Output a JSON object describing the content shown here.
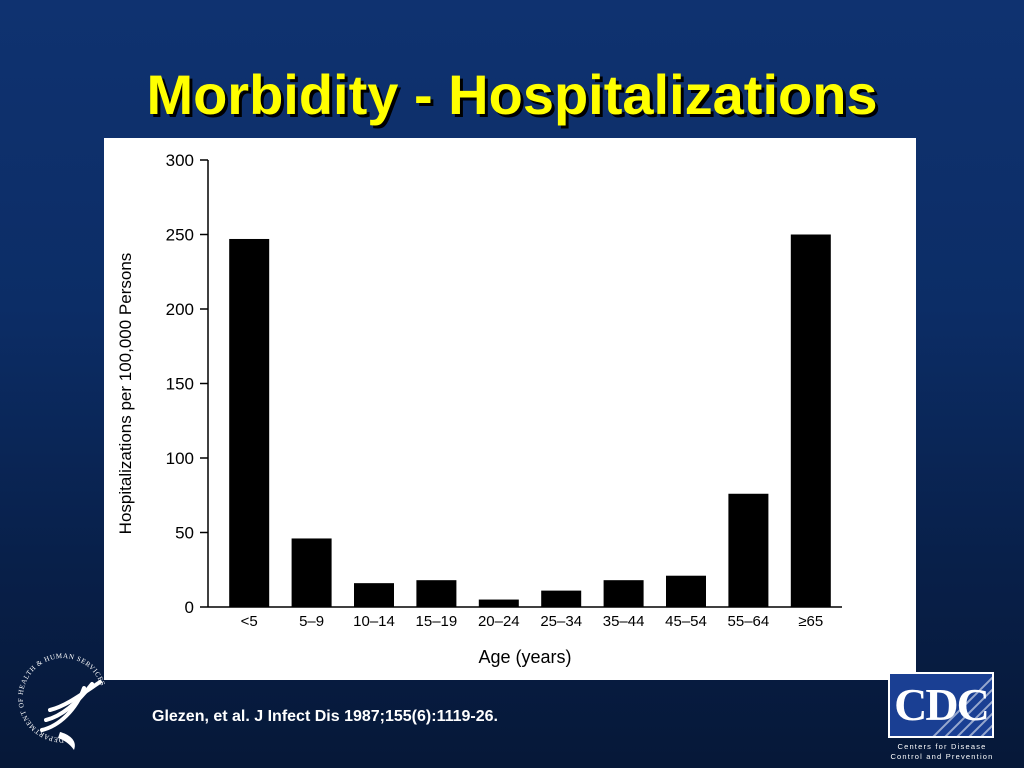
{
  "slide": {
    "title": "Morbidity - Hospitalizations",
    "citation": "Glezen, et al. J Infect Dis 1987;155(6):1119-26.",
    "title_color": "#ffff00",
    "background_color": "#0c2d66"
  },
  "chart_data": {
    "type": "bar",
    "title": "",
    "xlabel": "Age (years)",
    "ylabel": "Hospitalizations per 100,000 Persons",
    "categories": [
      "<5",
      "5–9",
      "10–14",
      "15–19",
      "20–24",
      "25–34",
      "35–44",
      "45–54",
      "55–64",
      "≥65"
    ],
    "values": [
      247,
      46,
      16,
      18,
      5,
      11,
      18,
      21,
      76,
      250
    ],
    "ylim": [
      0,
      300
    ],
    "yticks": [
      0,
      50,
      100,
      150,
      200,
      250,
      300
    ],
    "bar_color": "#000000",
    "grid": false,
    "legend": "none"
  },
  "logos": {
    "hhs_icon": "hhs-eagle-seal-icon",
    "hhs_ring_text": "DEPARTMENT OF HEALTH & HUMAN SERVICES · USA",
    "cdc_letters": "CDC",
    "cdc_line1": "Centers for Disease",
    "cdc_line2": "Control and Prevention"
  }
}
